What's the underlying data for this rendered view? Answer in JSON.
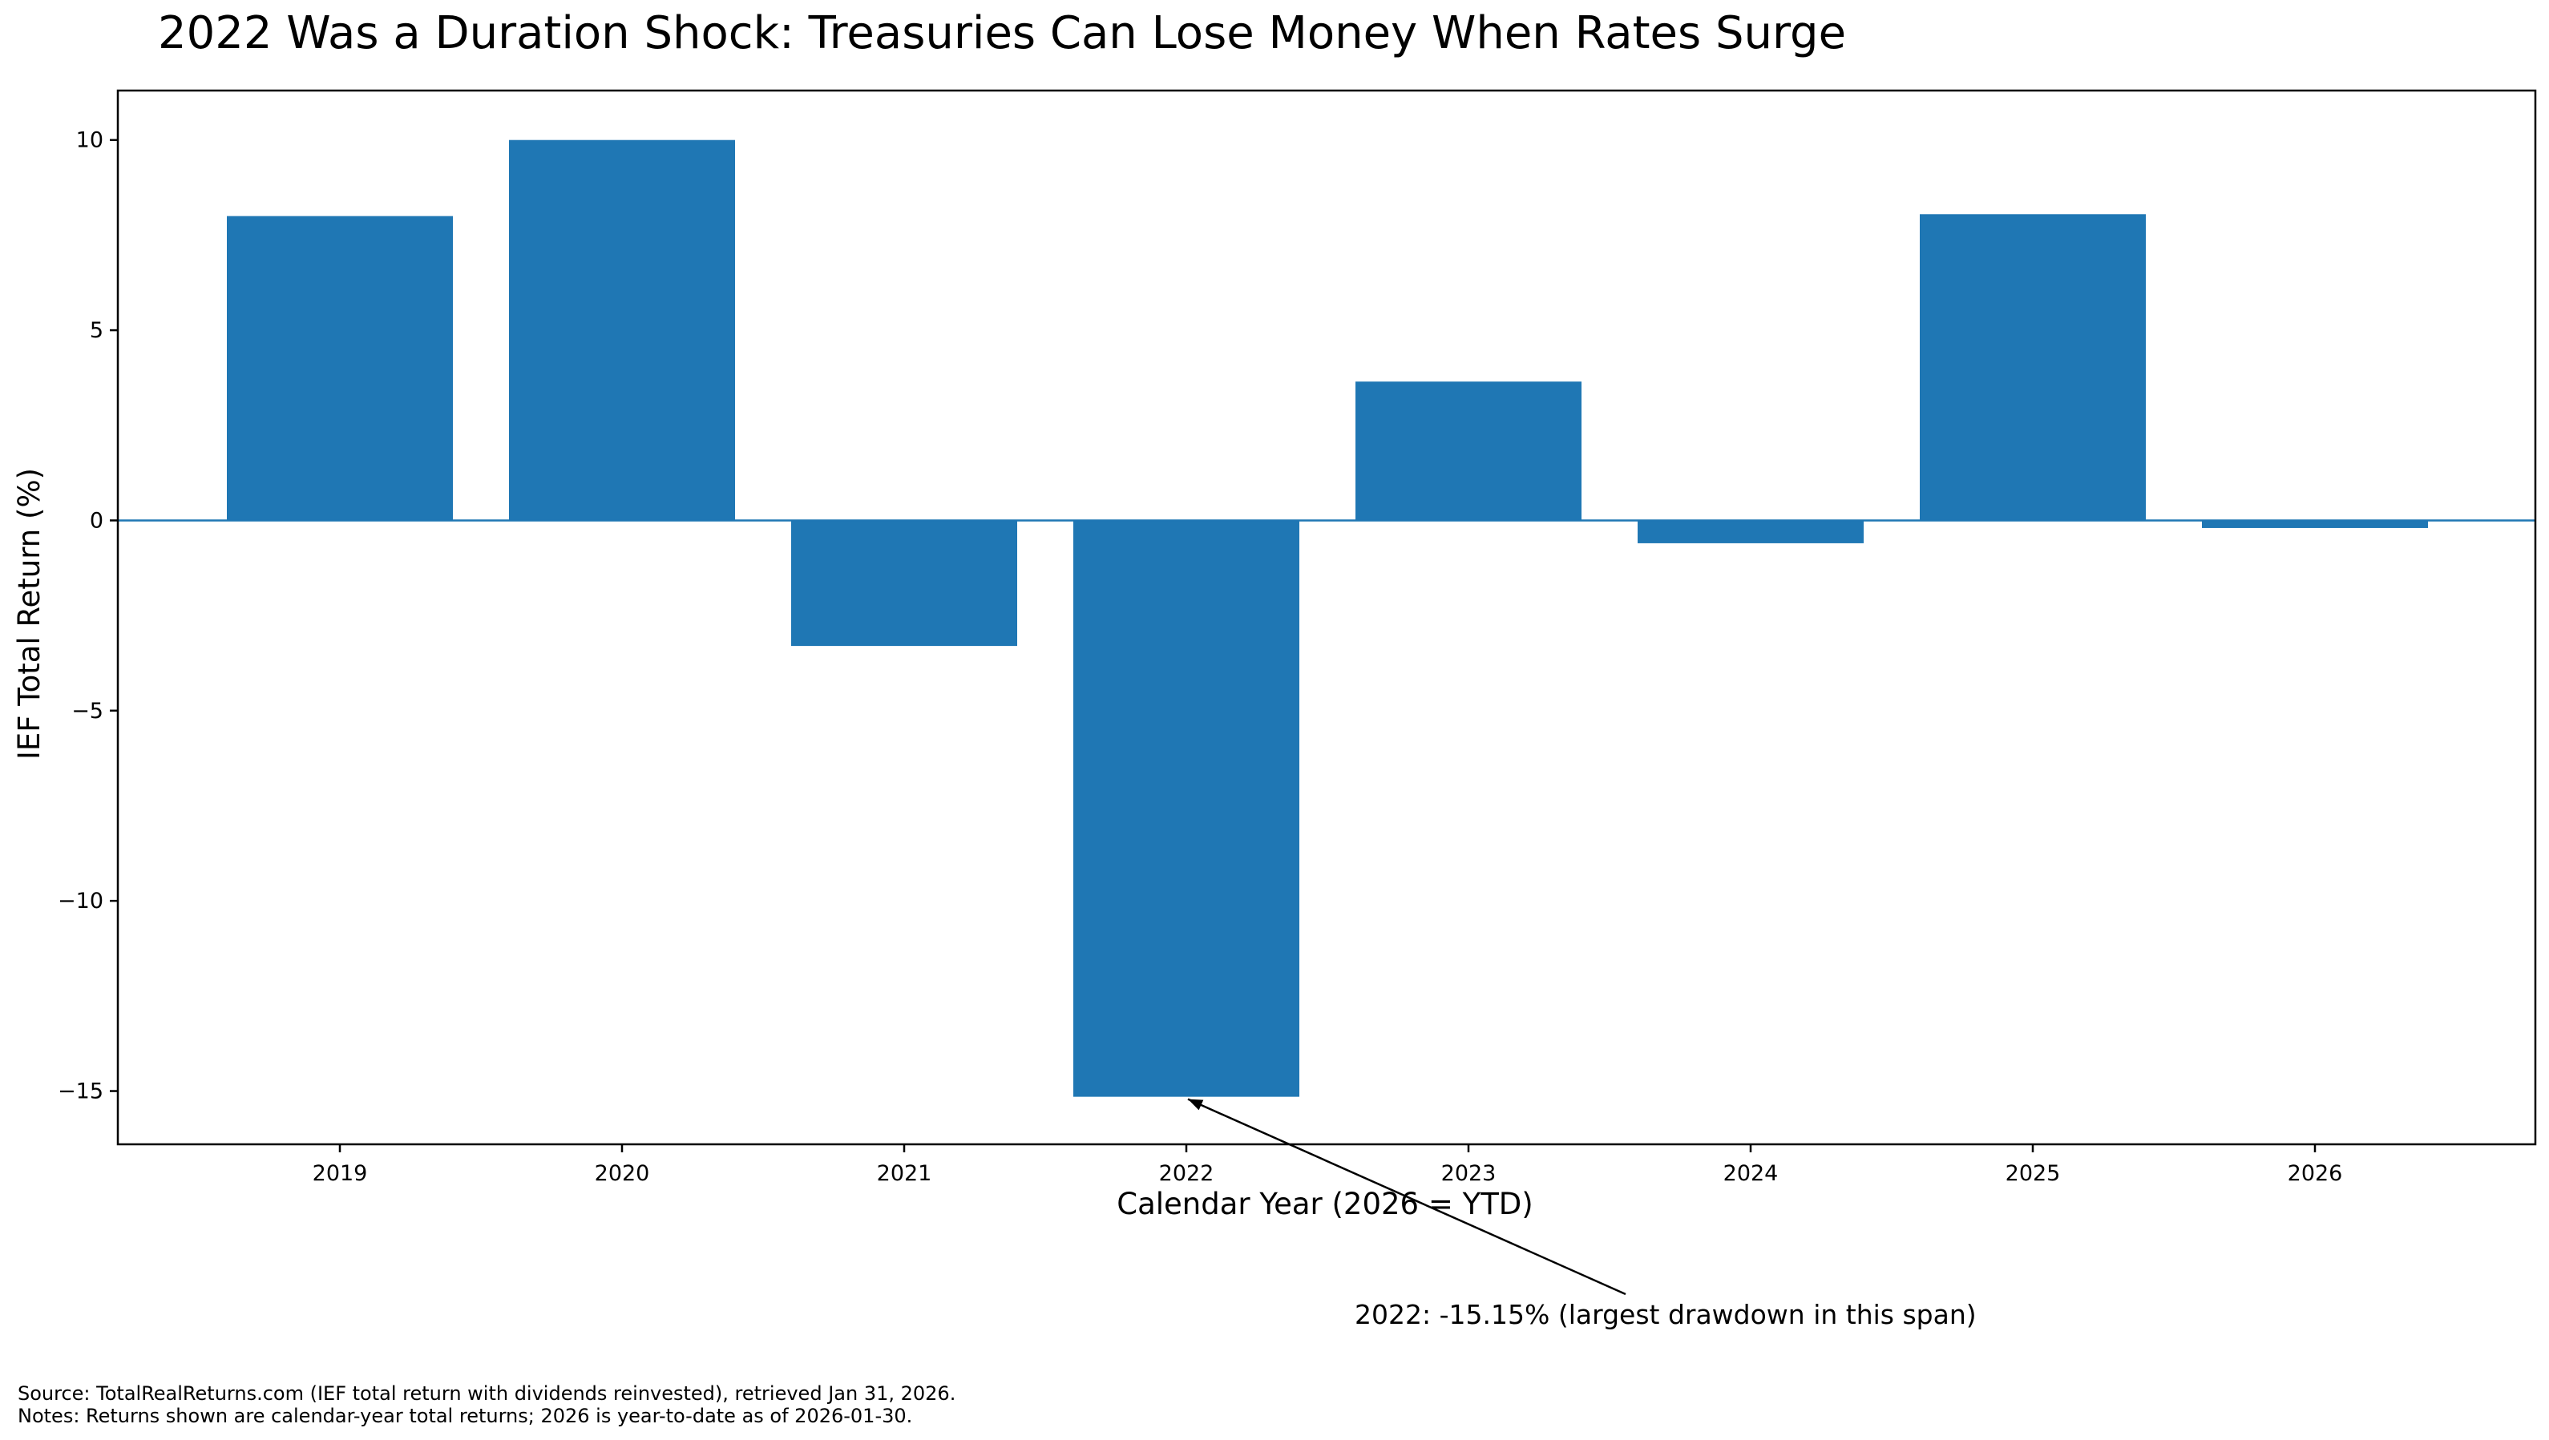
{
  "chart_data": {
    "type": "bar",
    "title": "2022 Was a Duration Shock: Treasuries Can Lose Money When Rates Surge",
    "xlabel": "Calendar Year (2026 = YTD)",
    "ylabel": "IEF Total Return (%)",
    "categories": [
      "2019",
      "2020",
      "2021",
      "2022",
      "2023",
      "2024",
      "2025",
      "2026"
    ],
    "values": [
      8.0,
      10.0,
      -3.3,
      -15.15,
      3.65,
      -0.6,
      8.05,
      -0.2
    ],
    "ylim": [
      -16.4,
      11.3
    ],
    "yticks": [
      {
        "value": 10,
        "label": "10"
      },
      {
        "value": 5,
        "label": "5"
      },
      {
        "value": 0,
        "label": "0"
      },
      {
        "value": -5,
        "label": "−5"
      },
      {
        "value": -10,
        "label": "−10"
      },
      {
        "value": -15,
        "label": "−15"
      }
    ],
    "bar_color": "#1f77b4",
    "zero_line_color": "#1f77b4",
    "grid": false,
    "annotation": {
      "text": "2022: -15.15% (largest drawdown in this span)",
      "target_category": "2022",
      "target_value": -15.15
    },
    "footnotes": [
      "Source: TotalRealReturns.com (IEF total return with dividends reinvested), retrieved Jan 31, 2026.",
      "Notes: Returns shown are calendar-year total returns; 2026 is year-to-date as of 2026-01-30."
    ]
  }
}
